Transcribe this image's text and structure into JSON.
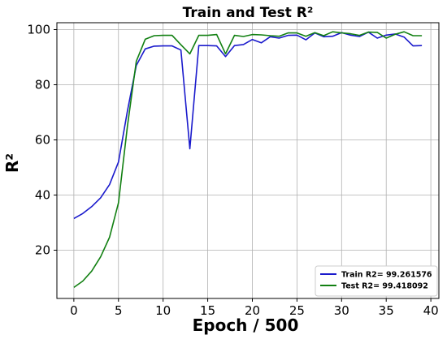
{
  "chart_data": {
    "type": "line",
    "title": "Train and Test R²",
    "xlabel": "Epoch / 500",
    "ylabel": "R²",
    "xlim": [
      -1.9,
      40.9
    ],
    "ylim": [
      2.5,
      102.5
    ],
    "xticks": [
      0,
      5,
      10,
      15,
      20,
      25,
      30,
      35,
      40
    ],
    "yticks": [
      20,
      40,
      60,
      80,
      100
    ],
    "grid": true,
    "legend_position": "lower-right",
    "x": [
      0,
      1,
      2,
      3,
      4,
      5,
      6,
      7,
      8,
      9,
      10,
      11,
      12,
      13,
      14,
      15,
      16,
      17,
      18,
      19,
      20,
      21,
      22,
      23,
      24,
      25,
      26,
      27,
      28,
      29,
      30,
      31,
      32,
      33,
      34,
      35,
      36,
      37,
      38,
      39
    ],
    "series": [
      {
        "name": "Train R2= 99.261576",
        "color": "#1a1acc",
        "values": [
          31.5,
          33.3,
          35.8,
          39.0,
          43.8,
          52.0,
          70.5,
          87.0,
          93.0,
          94.0,
          94.1,
          94.1,
          92.6,
          56.8,
          94.2,
          94.2,
          94.1,
          90.2,
          94.2,
          94.6,
          96.4,
          95.2,
          97.4,
          96.9,
          97.9,
          98.0,
          96.3,
          98.8,
          97.4,
          97.6,
          98.9,
          98.0,
          97.5,
          99.1,
          96.9,
          98.0,
          98.4,
          97.3,
          94.1,
          94.2
        ]
      },
      {
        "name": "Test R2= 99.418092",
        "color": "#128012",
        "values": [
          6.5,
          8.8,
          12.4,
          17.6,
          24.7,
          37.2,
          65.0,
          88.5,
          96.5,
          97.8,
          97.9,
          97.9,
          94.5,
          91.2,
          97.9,
          97.9,
          98.2,
          91.2,
          97.9,
          97.5,
          98.2,
          98.1,
          97.8,
          97.6,
          98.8,
          98.8,
          97.6,
          98.9,
          97.8,
          99.2,
          98.8,
          98.5,
          97.9,
          99.1,
          99.0,
          96.9,
          98.3,
          99.2,
          97.8,
          97.8
        ]
      }
    ]
  }
}
